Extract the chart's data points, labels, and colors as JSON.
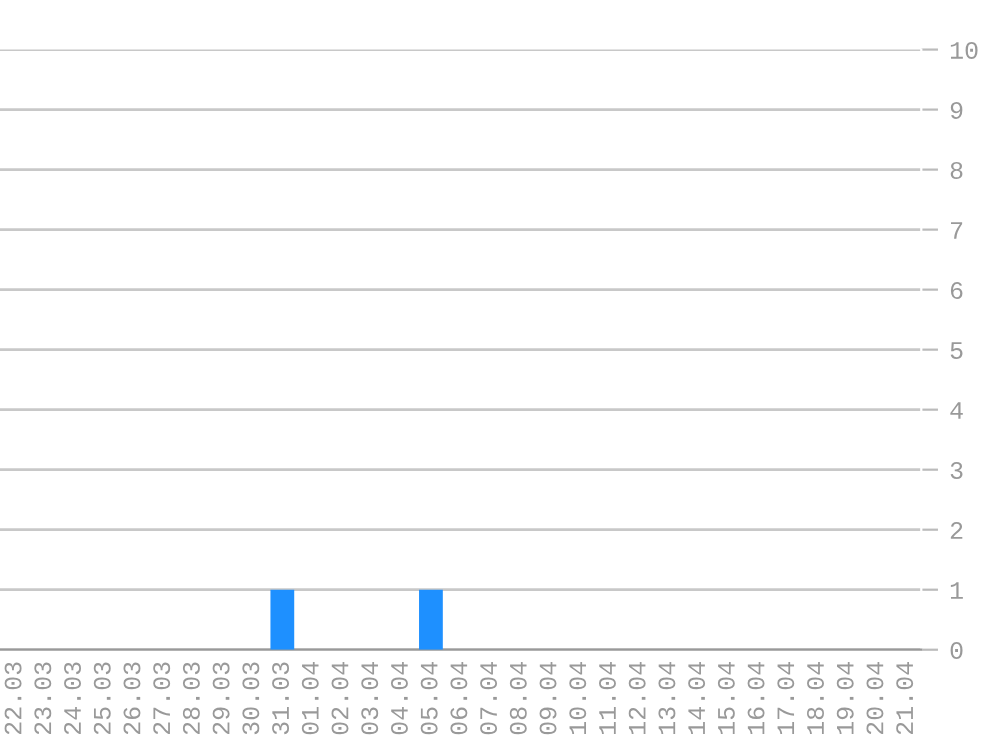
{
  "chart_data": {
    "type": "bar",
    "categories": [
      "22.03",
      "23.03",
      "24.03",
      "25.03",
      "26.03",
      "27.03",
      "28.03",
      "29.03",
      "30.03",
      "31.03",
      "01.04",
      "02.04",
      "03.04",
      "04.04",
      "05.04",
      "06.04",
      "07.04",
      "08.04",
      "09.04",
      "10.04",
      "11.04",
      "12.04",
      "13.04",
      "14.04",
      "15.04",
      "16.04",
      "17.04",
      "18.04",
      "19.04",
      "20.04",
      "21.04"
    ],
    "values": [
      0,
      0,
      0,
      0,
      0,
      0,
      0,
      0,
      0,
      1,
      0,
      0,
      0,
      0,
      1,
      0,
      0,
      0,
      0,
      0,
      0,
      0,
      0,
      0,
      0,
      0,
      0,
      0,
      0,
      0,
      0
    ],
    "color": "#1e90ff",
    "ylim": [
      0,
      10
    ],
    "yticks": [
      0,
      1,
      2,
      3,
      4,
      5,
      6,
      7,
      8,
      9,
      10
    ],
    "grid": "y",
    "legend": false
  }
}
